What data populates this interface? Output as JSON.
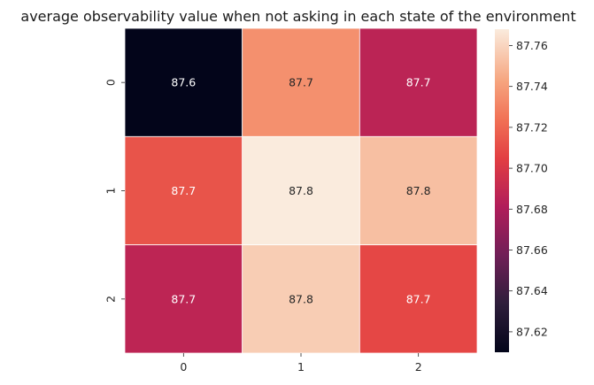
{
  "chart_data": {
    "type": "heatmap",
    "title": "average observability value when not asking in each state of the environment",
    "x_categories": [
      "0",
      "1",
      "2"
    ],
    "y_categories": [
      "0",
      "1",
      "2"
    ],
    "values": [
      [
        87.61,
        87.735,
        87.686
      ],
      [
        87.713,
        87.768,
        87.752
      ],
      [
        87.687,
        87.757,
        87.708
      ]
    ],
    "cell_labels": [
      [
        "87.6",
        "87.7",
        "87.7"
      ],
      [
        "87.7",
        "87.8",
        "87.8"
      ],
      [
        "87.7",
        "87.8",
        "87.7"
      ]
    ],
    "colorbar": {
      "range": [
        87.61,
        87.768
      ],
      "ticks": [
        87.62,
        87.64,
        87.66,
        87.68,
        87.7,
        87.72,
        87.74,
        87.76
      ],
      "tick_labels": [
        "87.62",
        "87.64",
        "87.66",
        "87.68",
        "87.70",
        "87.72",
        "87.74",
        "87.76"
      ],
      "colormap": "rocket"
    },
    "cell_borders": "white",
    "grid": false
  }
}
